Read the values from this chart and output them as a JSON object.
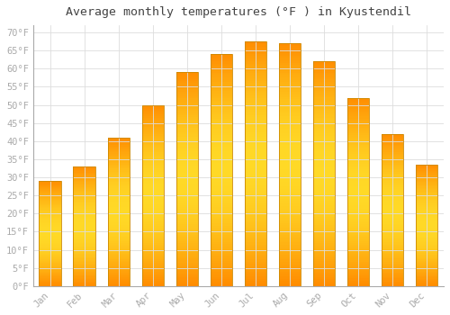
{
  "title": "Average monthly temperatures (°F ) in Kyustendil",
  "months": [
    "Jan",
    "Feb",
    "Mar",
    "Apr",
    "May",
    "Jun",
    "Jul",
    "Aug",
    "Sep",
    "Oct",
    "Nov",
    "Dec"
  ],
  "values": [
    29,
    33,
    41,
    50,
    59,
    64,
    67.5,
    67,
    62,
    52,
    42,
    33.5
  ],
  "bar_color_main": "#FFA500",
  "bar_color_highlight": "#FFD060",
  "background_color": "#FFFFFF",
  "grid_color": "#DDDDDD",
  "ylim": [
    0,
    72
  ],
  "yticks": [
    0,
    5,
    10,
    15,
    20,
    25,
    30,
    35,
    40,
    45,
    50,
    55,
    60,
    65,
    70
  ],
  "title_fontsize": 9.5,
  "tick_fontsize": 7.5,
  "tick_color": "#AAAAAA",
  "font_family": "monospace"
}
